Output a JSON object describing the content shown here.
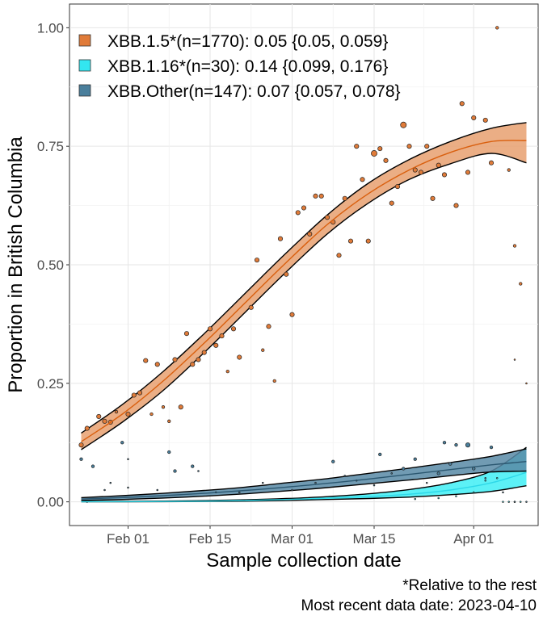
{
  "chart_data": {
    "type": "scatter",
    "xlabel": "Sample collection date",
    "ylabel": "Proportion in British Columbia",
    "x_tick_labels": [
      "Feb 01",
      "Feb 15",
      "Mar 01",
      "Mar 15",
      "Apr 01"
    ],
    "x_tick_dates": [
      "2023-02-01",
      "2023-02-15",
      "2023-03-01",
      "2023-03-15",
      "2023-04-01"
    ],
    "y_tick_labels": [
      "0.00",
      "0.25",
      "0.50",
      "0.75",
      "1.00"
    ],
    "y_tick_values": [
      0,
      0.25,
      0.5,
      0.75,
      1.0
    ],
    "xlim": [
      "2023-01-22",
      "2023-04-12"
    ],
    "ylim": [
      -0.05,
      1.05
    ],
    "grid": true,
    "legend_position": "top-left",
    "captions": [
      "*Relative to the rest",
      "Most recent data date: 2023-04-10"
    ],
    "series": [
      {
        "name": "XBB.1.5*(n=1770): 0.05 {0.05, 0.059}",
        "color": "#E07B39",
        "line_color": "#D95F0E",
        "ribbon_color": "#E8A070",
        "fit": [
          [
            "2023-01-24",
            0.127,
            0.11,
            0.145
          ],
          [
            "2023-01-31",
            0.185,
            0.168,
            0.205
          ],
          [
            "2023-02-07",
            0.255,
            0.235,
            0.275
          ],
          [
            "2023-02-14",
            0.335,
            0.315,
            0.355
          ],
          [
            "2023-02-21",
            0.42,
            0.4,
            0.44
          ],
          [
            "2023-02-28",
            0.505,
            0.485,
            0.525
          ],
          [
            "2023-03-07",
            0.585,
            0.565,
            0.605
          ],
          [
            "2023-03-14",
            0.65,
            0.63,
            0.672
          ],
          [
            "2023-03-21",
            0.7,
            0.68,
            0.722
          ],
          [
            "2023-03-28",
            0.737,
            0.713,
            0.76
          ],
          [
            "2023-04-04",
            0.76,
            0.735,
            0.788
          ],
          [
            "2023-04-10",
            0.762,
            0.715,
            0.8
          ]
        ],
        "points": [
          [
            "2023-01-24",
            0.12,
            3
          ],
          [
            "2023-01-25",
            0.155,
            3
          ],
          [
            "2023-01-27",
            0.18,
            3
          ],
          [
            "2023-01-28",
            0.17,
            3
          ],
          [
            "2023-01-29",
            0.168,
            3
          ],
          [
            "2023-01-30",
            0.19,
            2
          ],
          [
            "2023-02-01",
            0.185,
            3
          ],
          [
            "2023-02-02",
            0.225,
            3
          ],
          [
            "2023-02-03",
            0.23,
            3
          ],
          [
            "2023-02-04",
            0.298,
            3
          ],
          [
            "2023-02-05",
            0.185,
            2
          ],
          [
            "2023-02-06",
            0.29,
            3
          ],
          [
            "2023-02-07",
            0.2,
            2
          ],
          [
            "2023-02-08",
            0.17,
            2
          ],
          [
            "2023-02-09",
            0.3,
            3
          ],
          [
            "2023-02-10",
            0.2,
            3
          ],
          [
            "2023-02-11",
            0.355,
            3
          ],
          [
            "2023-02-12",
            0.29,
            3
          ],
          [
            "2023-02-13",
            0.3,
            3
          ],
          [
            "2023-02-14",
            0.315,
            3
          ],
          [
            "2023-02-15",
            0.365,
            3
          ],
          [
            "2023-02-16",
            0.33,
            3
          ],
          [
            "2023-02-17",
            0.35,
            3
          ],
          [
            "2023-02-18",
            0.275,
            2
          ],
          [
            "2023-02-19",
            0.365,
            3
          ],
          [
            "2023-02-20",
            0.305,
            3
          ],
          [
            "2023-02-22",
            0.41,
            3
          ],
          [
            "2023-02-23",
            0.51,
            3
          ],
          [
            "2023-02-24",
            0.32,
            2
          ],
          [
            "2023-02-25",
            0.37,
            3
          ],
          [
            "2023-02-26",
            0.255,
            2
          ],
          [
            "2023-02-27",
            0.555,
            3
          ],
          [
            "2023-02-28",
            0.48,
            3
          ],
          [
            "2023-03-01",
            0.395,
            3
          ],
          [
            "2023-03-02",
            0.61,
            3
          ],
          [
            "2023-03-03",
            0.62,
            3
          ],
          [
            "2023-03-04",
            0.565,
            3
          ],
          [
            "2023-03-05",
            0.645,
            3
          ],
          [
            "2023-03-06",
            0.645,
            3
          ],
          [
            "2023-03-07",
            0.6,
            3
          ],
          [
            "2023-03-08",
            0.59,
            3
          ],
          [
            "2023-03-09",
            0.52,
            3
          ],
          [
            "2023-03-10",
            0.64,
            3
          ],
          [
            "2023-03-11",
            0.55,
            3
          ],
          [
            "2023-03-12",
            0.75,
            3
          ],
          [
            "2023-03-13",
            0.68,
            3
          ],
          [
            "2023-03-14",
            0.55,
            3
          ],
          [
            "2023-03-15",
            0.735,
            4
          ],
          [
            "2023-03-16",
            0.745,
            3
          ],
          [
            "2023-03-17",
            0.72,
            3
          ],
          [
            "2023-03-18",
            0.63,
            3
          ],
          [
            "2023-03-19",
            0.665,
            3
          ],
          [
            "2023-03-20",
            0.795,
            4
          ],
          [
            "2023-03-21",
            0.75,
            3
          ],
          [
            "2023-03-22",
            0.7,
            3
          ],
          [
            "2023-03-23",
            0.695,
            3
          ],
          [
            "2023-03-24",
            0.75,
            3
          ],
          [
            "2023-03-25",
            0.64,
            3
          ],
          [
            "2023-03-26",
            0.71,
            3
          ],
          [
            "2023-03-27",
            0.69,
            3
          ],
          [
            "2023-03-29",
            0.625,
            3
          ],
          [
            "2023-03-30",
            0.84,
            3
          ],
          [
            "2023-03-31",
            0.695,
            3
          ],
          [
            "2023-04-01",
            0.81,
            3
          ],
          [
            "2023-04-03",
            0.805,
            3
          ],
          [
            "2023-04-04",
            0.715,
            3
          ],
          [
            "2023-04-05",
            1.0,
            2
          ],
          [
            "2023-04-07",
            0.7,
            2
          ],
          [
            "2023-04-08",
            0.54,
            2
          ],
          [
            "2023-04-08",
            0.3,
            1
          ],
          [
            "2023-04-09",
            0.46,
            2
          ],
          [
            "2023-04-10",
            0.25,
            1
          ]
        ]
      },
      {
        "name": "XBB.1.16*(n=30): 0.14 {0.099, 0.176}",
        "color": "#33E6F0",
        "line_color": "#2ED8E8",
        "ribbon_color": "#40EEF5",
        "fit": [
          [
            "2023-01-24",
            0.0002,
            0.0001,
            0.0006
          ],
          [
            "2023-01-31",
            0.0004,
            0.0002,
            0.001
          ],
          [
            "2023-02-07",
            0.0008,
            0.0004,
            0.0016
          ],
          [
            "2023-02-14",
            0.0015,
            0.0007,
            0.0026
          ],
          [
            "2023-02-21",
            0.0028,
            0.0014,
            0.0043
          ],
          [
            "2023-02-28",
            0.005,
            0.003,
            0.007
          ],
          [
            "2023-03-07",
            0.0075,
            0.005,
            0.011
          ],
          [
            "2023-03-14",
            0.011,
            0.007,
            0.017
          ],
          [
            "2023-03-21",
            0.016,
            0.01,
            0.026
          ],
          [
            "2023-03-28",
            0.025,
            0.015,
            0.04
          ],
          [
            "2023-04-04",
            0.04,
            0.022,
            0.065
          ],
          [
            "2023-04-10",
            0.062,
            0.034,
            0.115
          ]
        ],
        "points": [
          [
            "2023-03-22",
            0.006,
            1
          ],
          [
            "2023-03-26",
            0.008,
            1
          ],
          [
            "2023-03-29",
            0.012,
            1
          ],
          [
            "2023-04-01",
            0.02,
            1
          ],
          [
            "2023-04-03",
            0.045,
            1
          ],
          [
            "2023-04-05",
            0.05,
            1
          ],
          [
            "2023-04-06",
            0.0,
            1
          ],
          [
            "2023-04-07",
            0.0,
            1
          ],
          [
            "2023-04-08",
            0.0,
            1
          ],
          [
            "2023-04-09",
            0.0,
            1
          ]
        ]
      },
      {
        "name": "XBB.Other(n=147): 0.07 {0.057, 0.078}",
        "color": "#4A7F9C",
        "line_color": "#2B5770",
        "ribbon_color": "#5889A6",
        "fit": [
          [
            "2023-01-24",
            0.006,
            0.003,
            0.009
          ],
          [
            "2023-01-31",
            0.009,
            0.005,
            0.013
          ],
          [
            "2023-02-07",
            0.013,
            0.008,
            0.018
          ],
          [
            "2023-02-14",
            0.018,
            0.012,
            0.024
          ],
          [
            "2023-02-21",
            0.024,
            0.017,
            0.031
          ],
          [
            "2023-02-28",
            0.031,
            0.023,
            0.04
          ],
          [
            "2023-03-07",
            0.039,
            0.03,
            0.049
          ],
          [
            "2023-03-14",
            0.048,
            0.038,
            0.06
          ],
          [
            "2023-03-21",
            0.058,
            0.046,
            0.071
          ],
          [
            "2023-03-28",
            0.068,
            0.055,
            0.083
          ],
          [
            "2023-04-04",
            0.078,
            0.063,
            0.096
          ],
          [
            "2023-04-10",
            0.085,
            0.065,
            0.112
          ]
        ],
        "points": [
          [
            "2023-01-24",
            0.09,
            2
          ],
          [
            "2023-01-25",
            0.0,
            1
          ],
          [
            "2023-01-26",
            0.075,
            2
          ],
          [
            "2023-01-28",
            0.025,
            1
          ],
          [
            "2023-01-29",
            0.04,
            1
          ],
          [
            "2023-01-31",
            0.125,
            2
          ],
          [
            "2023-02-01",
            0.09,
            1
          ],
          [
            "2023-02-01",
            0.03,
            1
          ],
          [
            "2023-02-06",
            0.025,
            1
          ],
          [
            "2023-02-08",
            0.105,
            2
          ],
          [
            "2023-02-09",
            0.065,
            2
          ],
          [
            "2023-02-12",
            0.075,
            2
          ],
          [
            "2023-02-13",
            0.065,
            1
          ],
          [
            "2023-02-16",
            0.02,
            1
          ],
          [
            "2023-02-20",
            0.02,
            1
          ],
          [
            "2023-02-24",
            0.04,
            1
          ],
          [
            "2023-03-01",
            0.025,
            1
          ],
          [
            "2023-03-05",
            0.04,
            1
          ],
          [
            "2023-03-08",
            0.085,
            2
          ],
          [
            "2023-03-10",
            0.055,
            1
          ],
          [
            "2023-03-12",
            0.045,
            1
          ],
          [
            "2023-03-15",
            0.035,
            1
          ],
          [
            "2023-03-16",
            0.1,
            2
          ],
          [
            "2023-03-18",
            0.06,
            1
          ],
          [
            "2023-03-20",
            0.07,
            2
          ],
          [
            "2023-03-22",
            0.09,
            2
          ],
          [
            "2023-03-24",
            0.04,
            1
          ],
          [
            "2023-03-26",
            0.06,
            2
          ],
          [
            "2023-03-27",
            0.125,
            2
          ],
          [
            "2023-03-28",
            0.08,
            2
          ],
          [
            "2023-03-29",
            0.12,
            2
          ],
          [
            "2023-03-31",
            0.12,
            3
          ],
          [
            "2023-04-01",
            0.07,
            2
          ],
          [
            "2023-04-03",
            0.05,
            1
          ],
          [
            "2023-04-04",
            0.115,
            2
          ],
          [
            "2023-04-06",
            0.02,
            1
          ],
          [
            "2023-04-08",
            0.0,
            1
          ],
          [
            "2023-04-10",
            0.0,
            1
          ]
        ]
      }
    ]
  }
}
